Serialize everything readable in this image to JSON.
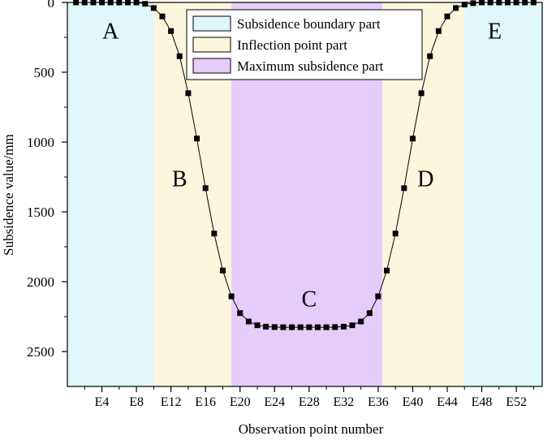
{
  "chart_data": {
    "type": "line",
    "title": "",
    "xlabel": "Observation point number",
    "ylabel": "Subsidence value/mm",
    "x_range": [
      0,
      55
    ],
    "ylim": [
      0,
      2750
    ],
    "y_inverted": true,
    "y_ticks": [
      0,
      500,
      1000,
      1500,
      2000,
      2500
    ],
    "y_tick_labels": [
      "0",
      "500",
      "1000",
      "1500",
      "2000",
      "2500"
    ],
    "x_ticks": [
      4,
      8,
      12,
      16,
      20,
      24,
      28,
      32,
      36,
      40,
      44,
      48,
      52
    ],
    "x_tick_labels": [
      "E4",
      "E8",
      "E12",
      "E16",
      "E20",
      "E24",
      "E28",
      "E32",
      "E36",
      "E40",
      "E44",
      "E48",
      "E52"
    ],
    "x_minor_step": 2,
    "y_minor_step": 250,
    "legend_position": "top-center",
    "regions": [
      {
        "id": "A",
        "label": "A",
        "part": "boundary",
        "x_start": 0,
        "x_end": 10,
        "label_x": 5,
        "label_y": 200
      },
      {
        "id": "B",
        "label": "B",
        "part": "inflection",
        "x_start": 10,
        "x_end": 19,
        "label_x": 13,
        "label_y": 1260
      },
      {
        "id": "C",
        "label": "C",
        "part": "maximum",
        "x_start": 19,
        "x_end": 36.5,
        "label_x": 28,
        "label_y": 2120
      },
      {
        "id": "D",
        "label": "D",
        "part": "inflection",
        "x_start": 36.5,
        "x_end": 46,
        "label_x": 41.5,
        "label_y": 1260
      },
      {
        "id": "E",
        "label": "E",
        "part": "boundary",
        "x_start": 46,
        "x_end": 55,
        "label_x": 49.5,
        "label_y": 200
      }
    ],
    "legend": [
      {
        "key": "boundary",
        "label": "Subsidence boundary part",
        "color": "#e0f7f9"
      },
      {
        "key": "inflection",
        "label": "Inflection point part",
        "color": "#fcf6dc"
      },
      {
        "key": "maximum",
        "label": "Maximum subsidence part",
        "color": "#e4ccfb"
      }
    ],
    "series": [
      {
        "x": [
          1,
          2,
          3,
          4,
          5,
          6,
          7,
          8,
          9,
          10,
          11,
          12,
          13,
          14,
          15,
          16,
          17,
          18,
          19,
          20,
          21,
          22,
          23,
          24,
          25,
          26,
          27,
          28,
          29,
          30,
          31,
          32,
          33,
          34,
          35,
          36,
          37,
          38,
          39,
          40,
          41,
          42,
          43,
          44,
          45,
          46,
          47,
          48,
          49,
          50,
          51,
          52,
          53,
          54
        ],
        "values": [
          0,
          0,
          0,
          0,
          0,
          0,
          0,
          0,
          10,
          40,
          100,
          205,
          385,
          650,
          975,
          1330,
          1655,
          1920,
          2105,
          2225,
          2285,
          2312,
          2322,
          2325,
          2326,
          2326,
          2326,
          2326,
          2326,
          2326,
          2325,
          2322,
          2312,
          2285,
          2225,
          2105,
          1920,
          1655,
          1330,
          975,
          650,
          385,
          205,
          100,
          40,
          15,
          5,
          0,
          0,
          0,
          0,
          0,
          0,
          0
        ],
        "color": "#000000",
        "marker": "square"
      }
    ]
  }
}
